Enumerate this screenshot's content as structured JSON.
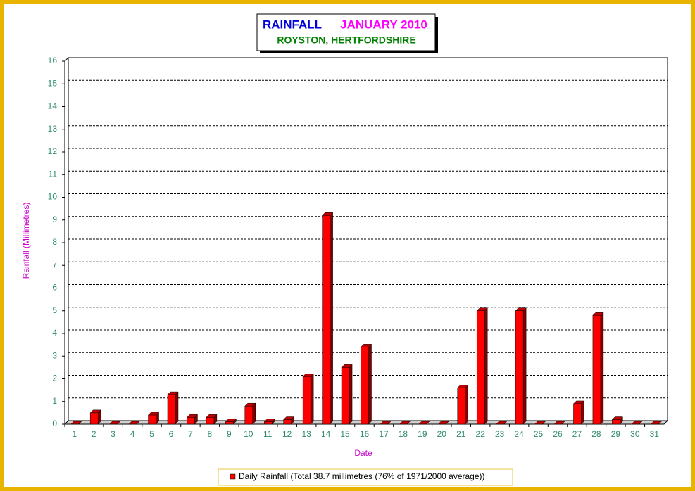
{
  "chart_data": {
    "type": "bar",
    "title": [
      "RAINFALL",
      "JANUARY 2010"
    ],
    "subtitle": "ROYSTON, HERTFORDSHIRE",
    "y_label": "Rainfall  (Millimetres)",
    "x_label": "Date",
    "categories": [
      "1",
      "2",
      "3",
      "4",
      "5",
      "6",
      "7",
      "8",
      "9",
      "10",
      "11",
      "12",
      "13",
      "14",
      "15",
      "16",
      "17",
      "18",
      "19",
      "20",
      "21",
      "22",
      "23",
      "24",
      "25",
      "26",
      "27",
      "28",
      "29",
      "30",
      "31"
    ],
    "series": [
      {
        "name": "Daily Rainfall (Total 38.7 millimetres (76% of 1971/2000 average))",
        "color": "#ff0000",
        "values": [
          0,
          0.5,
          0,
          0,
          0.4,
          1.3,
          0.3,
          0.3,
          0.1,
          0.8,
          0.1,
          0.2,
          2.1,
          9.2,
          2.5,
          3.4,
          0,
          0,
          0,
          0,
          1.6,
          5.0,
          0,
          5.0,
          0,
          0,
          0.9,
          4.8,
          0.2,
          0,
          0
        ]
      }
    ],
    "ylim": [
      0,
      16
    ],
    "yticks": [
      0,
      1,
      2,
      3,
      4,
      5,
      6,
      7,
      8,
      9,
      10,
      11,
      12,
      13,
      14,
      15,
      16
    ],
    "grid": true
  }
}
